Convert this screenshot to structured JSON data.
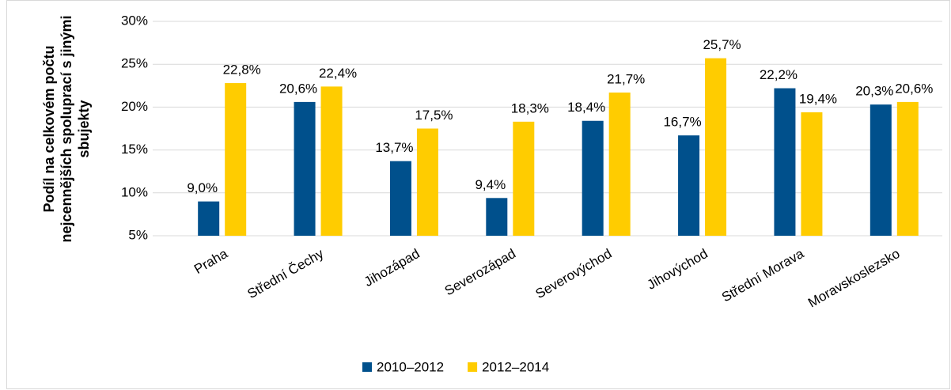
{
  "chart_data": {
    "type": "bar",
    "ylabel": [
      "Podíl na celkovém počtu",
      "nejcennějších spoluprací s jinými",
      "sbujekty"
    ],
    "categories": [
      "Praha",
      "Střední Čechy",
      "Jihozápad",
      "Severozápad",
      "Severovýchod",
      "Jihovýchod",
      "Střední Morava",
      "Moravskoslezsko"
    ],
    "series": [
      {
        "name": "2010–2012",
        "color": "#00508c",
        "values": [
          9.0,
          20.6,
          13.7,
          9.4,
          18.4,
          16.7,
          22.2,
          20.3
        ],
        "value_labels": [
          "9,0%",
          "20,6%",
          "13,7%",
          "9,4%",
          "18,4%",
          "16,7%",
          "22,2%",
          "20,3%"
        ]
      },
      {
        "name": "2012–2014",
        "color": "#ffcc00",
        "values": [
          22.8,
          22.4,
          17.5,
          18.3,
          21.7,
          25.7,
          19.4,
          20.6
        ],
        "value_labels": [
          "22,8%",
          "22,4%",
          "17,5%",
          "18,3%",
          "21,7%",
          "25,7%",
          "19,4%",
          "20,6%"
        ]
      }
    ],
    "ylim": [
      5,
      30
    ],
    "yticks": [
      {
        "value": 5,
        "label": "5%"
      },
      {
        "value": 10,
        "label": "10%"
      },
      {
        "value": 15,
        "label": "15%"
      },
      {
        "value": 20,
        "label": "20%"
      },
      {
        "value": 25,
        "label": "25%"
      },
      {
        "value": 30,
        "label": "30%"
      }
    ],
    "grid": true,
    "legend": "bottom"
  }
}
